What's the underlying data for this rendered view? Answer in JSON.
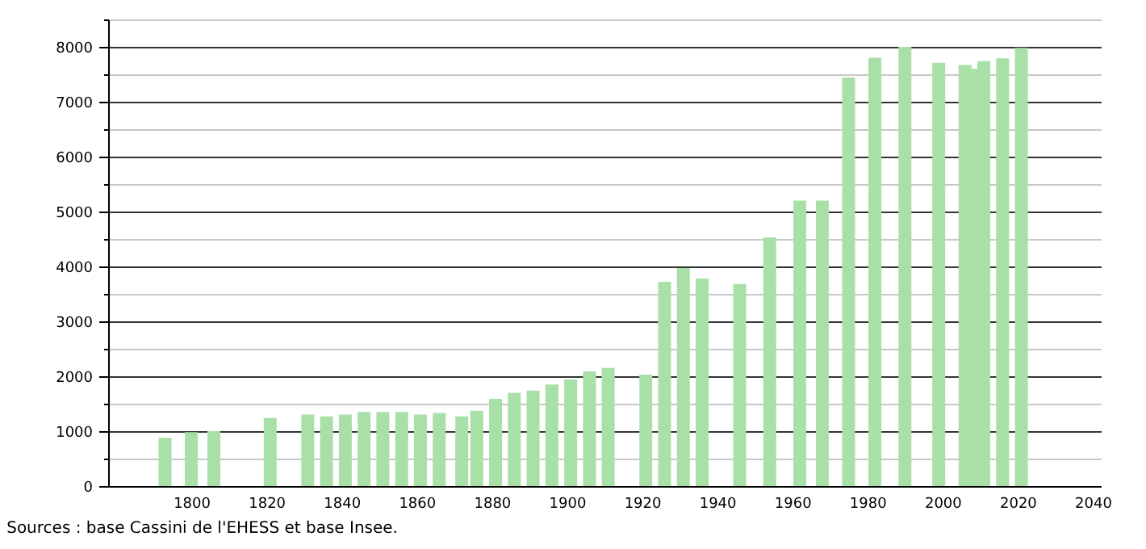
{
  "chart_data": {
    "type": "bar",
    "color": "#a8e0a8",
    "x": [
      1793,
      1800,
      1806,
      1821,
      1831,
      1836,
      1841,
      1846,
      1851,
      1856,
      1861,
      1866,
      1872,
      1876,
      1881,
      1886,
      1891,
      1896,
      1901,
      1906,
      1911,
      1921,
      1926,
      1931,
      1936,
      1946,
      1954,
      1962,
      1968,
      1975,
      1982,
      1990,
      1999,
      2006,
      2008,
      2011,
      2016,
      2021
    ],
    "values": [
      880,
      980,
      1000,
      1240,
      1300,
      1270,
      1300,
      1350,
      1350,
      1350,
      1300,
      1330,
      1270,
      1370,
      1590,
      1700,
      1740,
      1850,
      1940,
      2090,
      2150,
      2030,
      3720,
      3970,
      3780,
      3680,
      4530,
      5200,
      5200,
      7440,
      7800,
      8000,
      7710,
      7670,
      7600,
      7740,
      7790,
      7980
    ],
    "xlim": [
      1780,
      2040
    ],
    "xticks": [
      1800,
      1820,
      1840,
      1860,
      1880,
      1900,
      1920,
      1940,
      1960,
      1980,
      2000,
      2020,
      2040
    ],
    "ylim": [
      0,
      8500
    ],
    "yticks": [
      0,
      {
        "value": 500,
        "label": null
      },
      1000,
      {
        "value": 1500,
        "label": null
      },
      2000,
      {
        "value": 2500,
        "label": null
      },
      3000,
      {
        "value": 3500,
        "label": null
      },
      4000,
      {
        "value": 4500,
        "label": null
      },
      5000,
      {
        "value": 5500,
        "label": null
      },
      6000,
      {
        "value": 6500,
        "label": null
      },
      7000,
      {
        "value": 7500,
        "label": null
      },
      8000,
      {
        "value": 8500,
        "label": null
      }
    ],
    "grid": "y",
    "annotations": [
      "Sources : base Cassini de l'EHESS et base Insee."
    ]
  }
}
